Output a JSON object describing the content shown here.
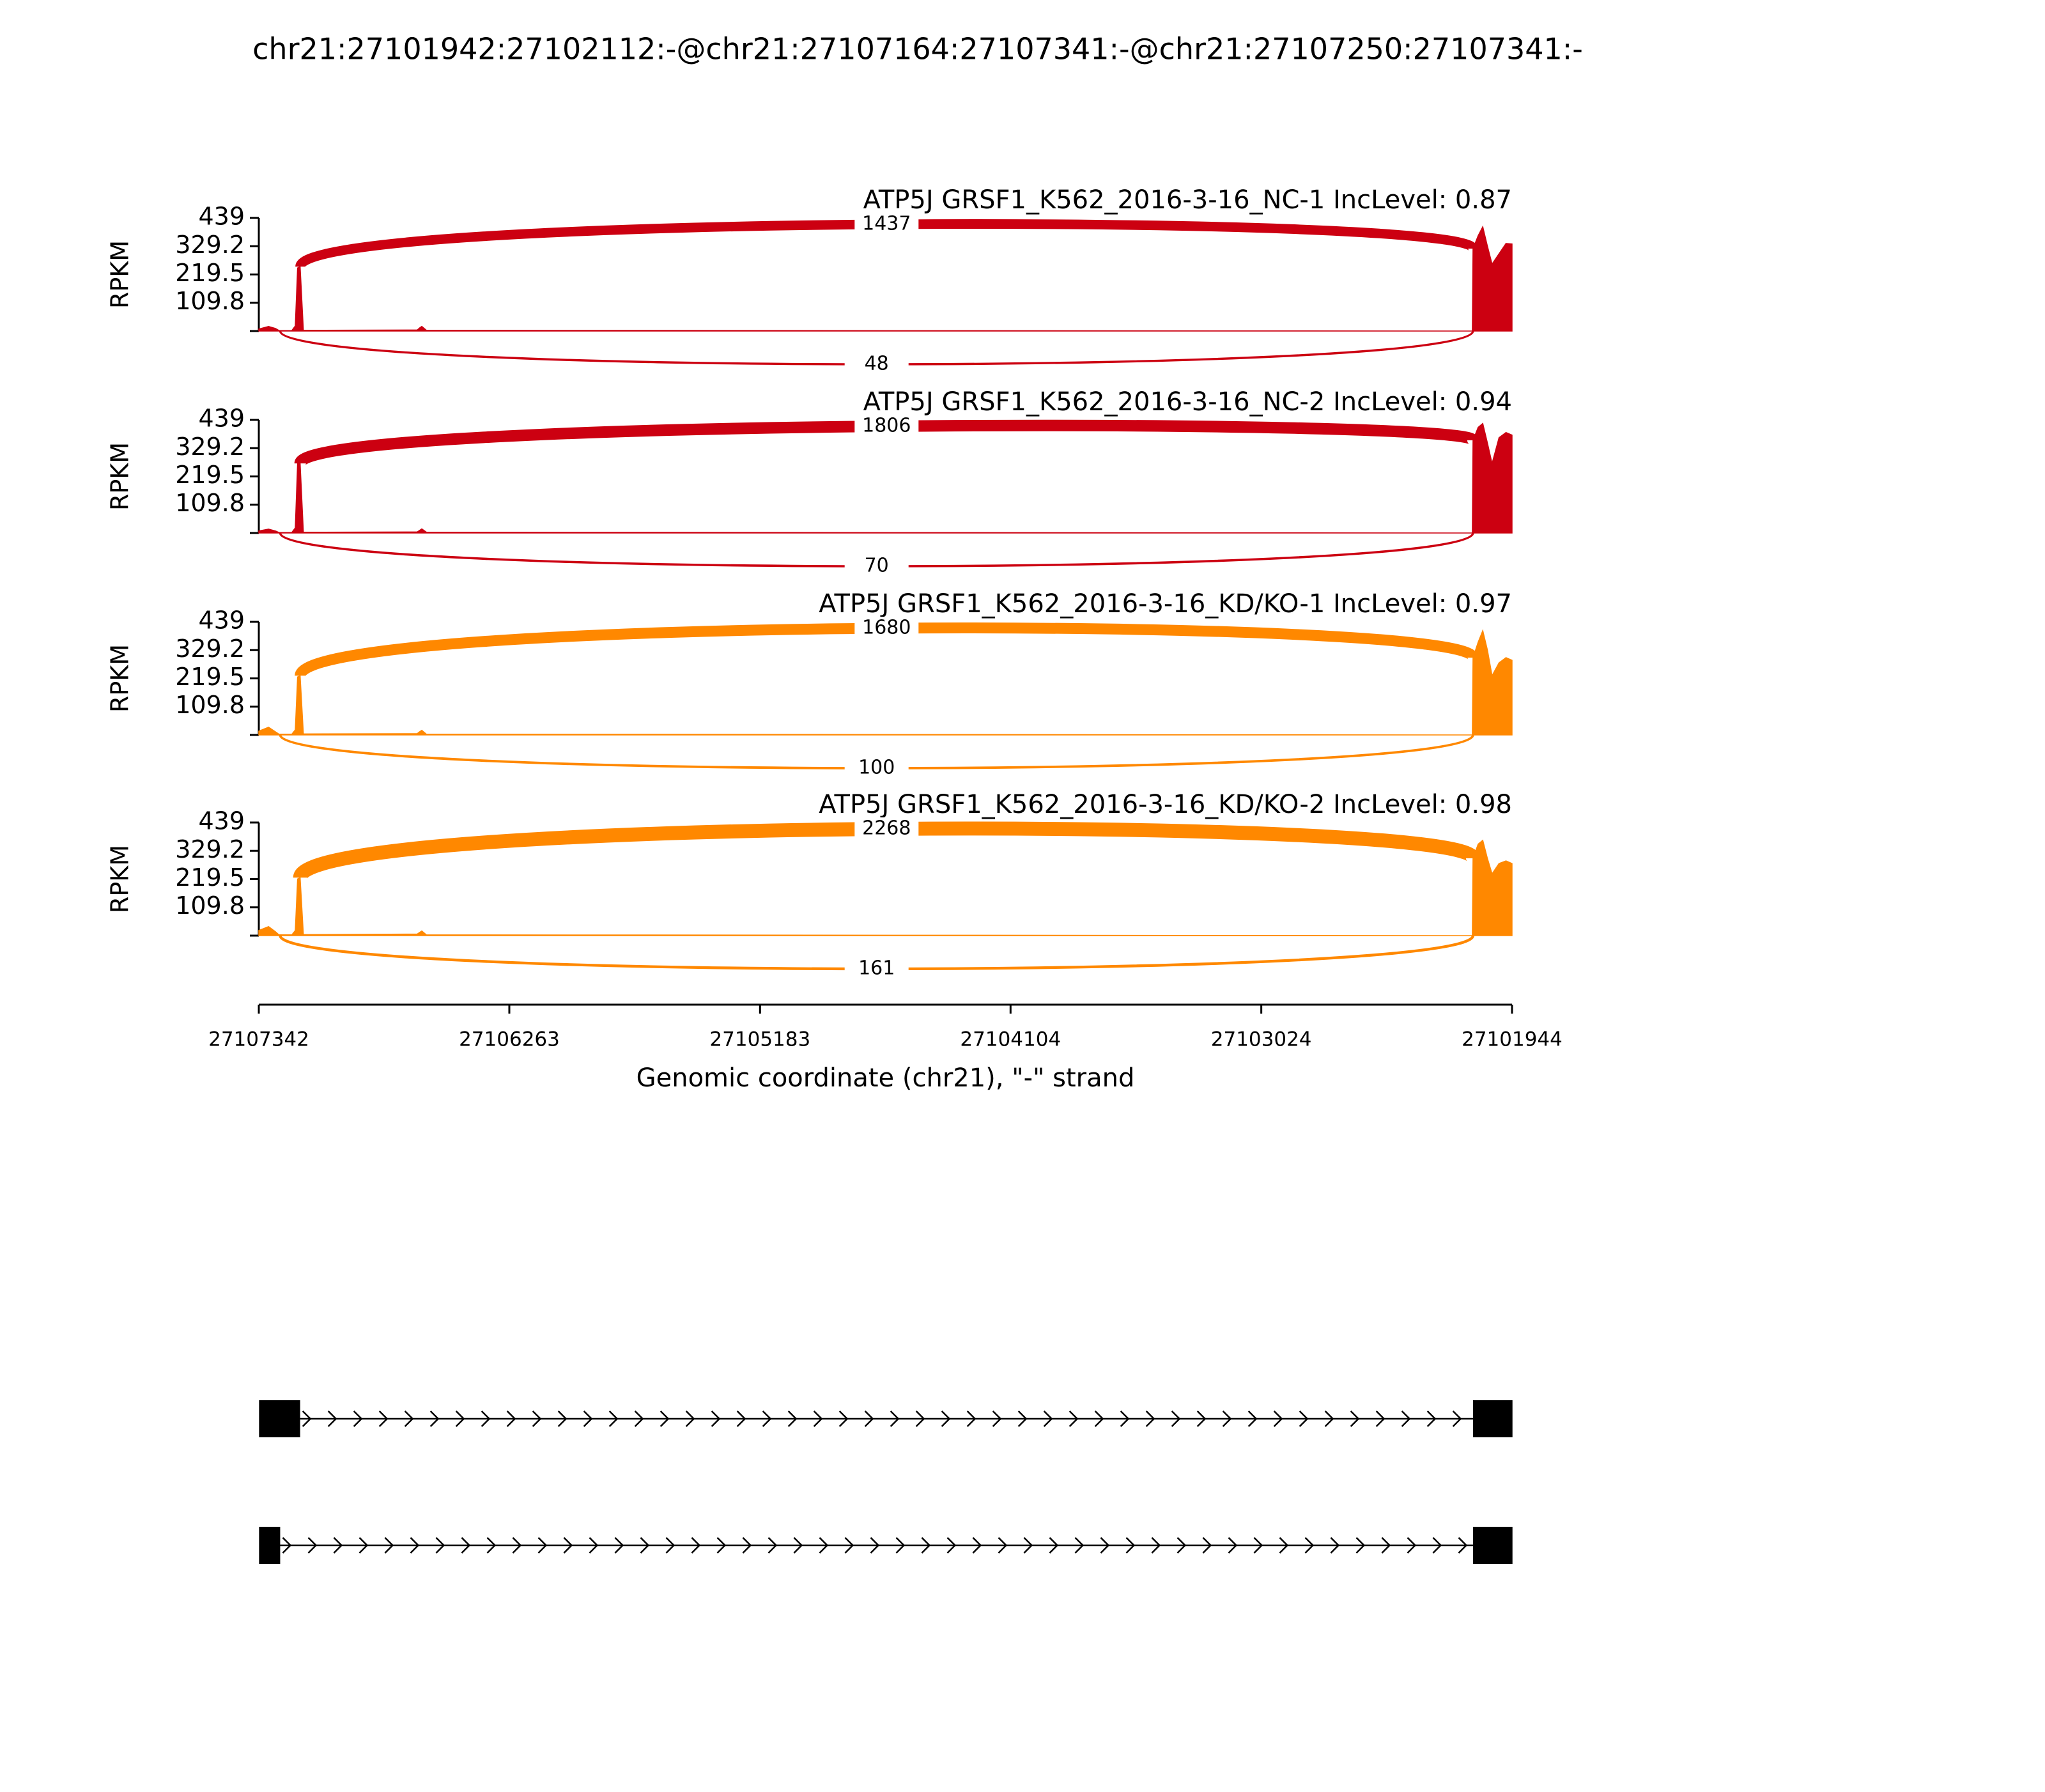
{
  "chart_data": {
    "type": "sashimi",
    "title": "chr21:27101942:27102112:-@chr21:27107164:27107341:-@chr21:27107250:27107341:-",
    "xlabel": "Genomic coordinate (chr21), \"-\" strand",
    "ylabel": "RPKM",
    "xlim": [
      27107342,
      27101944
    ],
    "xticks": [
      27107342,
      27106263,
      27105183,
      27104104,
      27103024,
      27101944
    ],
    "coverage_x": [
      27107342,
      27107300,
      27107270,
      27107255,
      27107200,
      27107185,
      27107175,
      27107164,
      27107150,
      27106660,
      27106650,
      27106640,
      27106620,
      27102115,
      27102112,
      27102090,
      27102070,
      27102050,
      27102030,
      27102000,
      27101970,
      27101944
    ],
    "panels": [
      {
        "label": "ATP5J GRSF1_K562_2016-3-16_NC-1 IncLevel: 0.87",
        "color": "#cc0011",
        "ylim": [
          0,
          439
        ],
        "yticks": [
          109.8,
          219.5,
          329.2,
          439
        ],
        "coverage": [
          8,
          18,
          10,
          2,
          2,
          20,
          245,
          250,
          3,
          4,
          12,
          18,
          3,
          0,
          320,
          370,
          405,
          330,
          260,
          300,
          340,
          338
        ],
        "junctions": [
          {
            "start": 27107164,
            "end": 27102112,
            "count": 1437
          },
          {
            "start": 27107250,
            "end": 27102112,
            "count": 48
          }
        ]
      },
      {
        "label": "ATP5J GRSF1_K562_2016-3-16_NC-2 IncLevel: 0.94",
        "color": "#cc0011",
        "ylim": [
          0,
          439
        ],
        "yticks": [
          109.8,
          219.5,
          329.2,
          439
        ],
        "coverage": [
          8,
          15,
          8,
          2,
          2,
          20,
          270,
          270,
          3,
          4,
          10,
          16,
          3,
          0,
          360,
          410,
          425,
          350,
          270,
          370,
          390,
          380
        ],
        "junctions": [
          {
            "start": 27107164,
            "end": 27102112,
            "count": 1806
          },
          {
            "start": 27107250,
            "end": 27102112,
            "count": 70
          }
        ]
      },
      {
        "label": "ATP5J GRSF1_K562_2016-3-16_KD/KO-1 IncLevel: 0.97",
        "color": "#ff8800",
        "ylim": [
          0,
          439
        ],
        "yticks": [
          109.8,
          219.5,
          329.2,
          439
        ],
        "coverage": [
          15,
          30,
          12,
          3,
          3,
          20,
          225,
          230,
          4,
          5,
          12,
          18,
          3,
          0,
          300,
          360,
          405,
          330,
          230,
          280,
          300,
          290
        ],
        "junctions": [
          {
            "start": 27107164,
            "end": 27102112,
            "count": 1680
          },
          {
            "start": 27107250,
            "end": 27102112,
            "count": 100
          }
        ]
      },
      {
        "label": "ATP5J GRSF1_K562_2016-3-16_KD/KO-2 IncLevel: 0.98",
        "color": "#ff8800",
        "ylim": [
          0,
          439
        ],
        "yticks": [
          109.8,
          219.5,
          329.2,
          439
        ],
        "coverage": [
          20,
          35,
          15,
          3,
          3,
          20,
          220,
          225,
          4,
          6,
          12,
          18,
          3,
          0,
          300,
          355,
          370,
          300,
          240,
          280,
          290,
          280
        ],
        "junctions": [
          {
            "start": 27107164,
            "end": 27102112,
            "count": 2268
          },
          {
            "start": 27107250,
            "end": 27102112,
            "count": 161
          }
        ]
      }
    ],
    "transcripts": [
      {
        "exons": [
          [
            27107341,
            27107164
          ],
          [
            27102112,
            27101942
          ]
        ]
      },
      {
        "exons": [
          [
            27107341,
            27107250
          ],
          [
            27102112,
            27101942
          ]
        ]
      }
    ]
  }
}
